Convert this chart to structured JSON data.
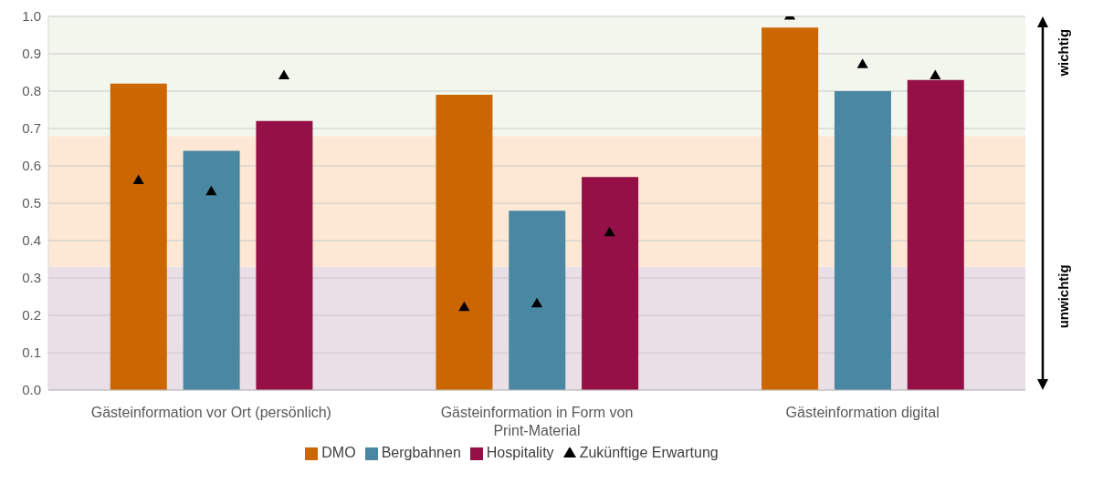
{
  "chart_data": {
    "type": "bar",
    "categories": [
      "Gästeinformation vor Ort (persönlich)",
      "Gästeinformation in Form von Print-Material",
      "Gästeinformation digital"
    ],
    "series": [
      {
        "name": "DMO",
        "color": "#cc6600",
        "values": [
          0.82,
          0.79,
          0.97
        ]
      },
      {
        "name": "Bergbahnen",
        "color": "#4a87a3",
        "values": [
          0.64,
          0.48,
          0.8
        ]
      },
      {
        "name": "Hospitality",
        "color": "#941046",
        "values": [
          0.72,
          0.57,
          0.83
        ]
      },
      {
        "name": "Zukünftige Erwartung",
        "type": "scatter",
        "color": "#000000",
        "x": [
          "Gästeinformation vor Ort (persönlich)",
          "Gästeinformation vor Ort (persönlich)",
          "Gästeinformation vor Ort (persönlich)",
          "Gästeinformation in Form von Print-Material",
          "Gästeinformation in Form von Print-Material",
          "Gästeinformation in Form von Print-Material",
          "Gästeinformation digital",
          "Gästeinformation digital",
          "Gästeinformation digital"
        ],
        "values": [
          0.56,
          0.53,
          0.84,
          0.22,
          0.23,
          0.42,
          1.0,
          0.87,
          0.84
        ]
      }
    ],
    "marker": "triangle",
    "ylim": [
      0,
      1
    ],
    "yticks": [
      {
        "value": 0,
        "label": "0.0"
      },
      {
        "value": 0.1,
        "label": "0.1"
      },
      {
        "value": 0.2,
        "label": "0.2"
      },
      {
        "value": 0.3,
        "label": "0.3"
      },
      {
        "value": 0.4,
        "label": "0.4"
      },
      {
        "value": 0.5,
        "label": "0.5"
      },
      {
        "value": 0.6,
        "label": "0.6"
      },
      {
        "value": 0.7,
        "label": "0.7"
      },
      {
        "value": 0.8,
        "label": "0.8"
      },
      {
        "value": 0.9,
        "label": "0.9"
      },
      {
        "value": 1,
        "label": "1.0"
      }
    ],
    "grid": "y",
    "legend": "bottom",
    "bands": [
      {
        "axis": "y",
        "from": 0,
        "to": 0.33,
        "color": "#e8dce3",
        "label": "unwichtig"
      },
      {
        "axis": "y",
        "from": 0.33,
        "to": 0.68,
        "color": "#fde6d0"
      },
      {
        "axis": "y",
        "from": 0.68,
        "to": 1,
        "color": "#f2f5ea",
        "label": "wichtig"
      }
    ]
  }
}
